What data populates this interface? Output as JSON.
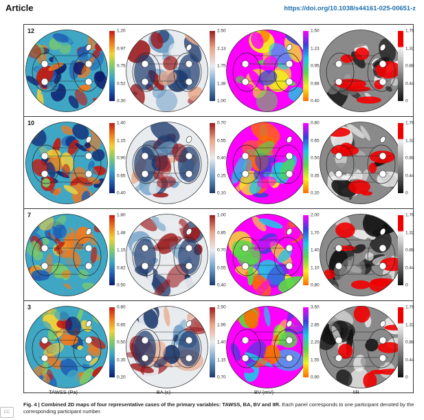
{
  "header": {
    "section": "Article",
    "doi": "https://doi.org/10.1038/s44161-025-00651-z"
  },
  "variables": [
    "TAWSS (Pa)",
    "BA (s)",
    "BV (mV)",
    "IIR"
  ],
  "panels": [
    {
      "participant": "12",
      "ticks": [
        [
          "1.20",
          "0.97",
          "0.75",
          "0.52",
          "0.30"
        ],
        [
          "2.50",
          "2.13",
          "1.75",
          "1.38",
          "1.00"
        ],
        [
          "1.50",
          "1.23",
          "0.95",
          "0.68",
          "0.40"
        ],
        [
          "1.76",
          "1.32",
          "0.88",
          "0.44",
          "0"
        ]
      ]
    },
    {
      "participant": "10",
      "ticks": [
        [
          "1.40",
          "1.15",
          "0.90",
          "0.65",
          "0.40"
        ],
        [
          "0.70",
          "0.55",
          "0.40",
          "0.25",
          "0.10"
        ],
        [
          "0.80",
          "0.65",
          "0.50",
          "0.35",
          "0.20"
        ],
        [
          "1.76",
          "1.32",
          "0.88",
          "0.44",
          "0"
        ]
      ]
    },
    {
      "participant": "7",
      "ticks": [
        [
          "1.80",
          "1.48",
          "1.15",
          "0.82",
          "0.50"
        ],
        [
          "1.00",
          "0.85",
          "0.70",
          "0.55",
          "0.40"
        ],
        [
          "2.00",
          "1.70",
          "1.40",
          "1.10",
          "0.80"
        ],
        [
          "1.76",
          "1.32",
          "0.88",
          "0.44",
          "0"
        ]
      ]
    },
    {
      "participant": "3",
      "ticks": [
        [
          "0.80",
          "0.65",
          "0.50",
          "0.35",
          "0.20"
        ],
        [
          "2.50",
          "1.95",
          "1.40",
          "1.15",
          "0.70"
        ],
        [
          "3.50",
          "2.85",
          "2.20",
          "1.55",
          "0.90"
        ],
        [
          "1.76",
          "1.32",
          "0.88",
          "0.44",
          "0"
        ]
      ]
    }
  ],
  "caption": {
    "figure": "Fig. 4 | Combined 2D maps of four representative cases of the primary variables: TAWSS, BA, BV and IIR.",
    "text": " Each panel corresponds to one participant denoted by the corresponding participant number."
  },
  "colormaps": {
    "tawss": [
      "#0d1b6e",
      "#1f5fb4",
      "#3fa7c4",
      "#7ccb6a",
      "#f2d13a",
      "#f07a1e",
      "#c21c14"
    ],
    "ba": [
      "#1d3a6d",
      "#6e9fc7",
      "#e9ecef",
      "#e8a88a",
      "#9d1c1f"
    ],
    "bv": [
      "#ff6a00",
      "#f6ee1a",
      "#58d64a",
      "#1ec6e6",
      "#3b3fd8",
      "#ff00ff"
    ],
    "iir": [
      "#111111",
      "#8a8a8a",
      "#f4f4f4"
    ]
  },
  "iir_red": "#f00000"
}
